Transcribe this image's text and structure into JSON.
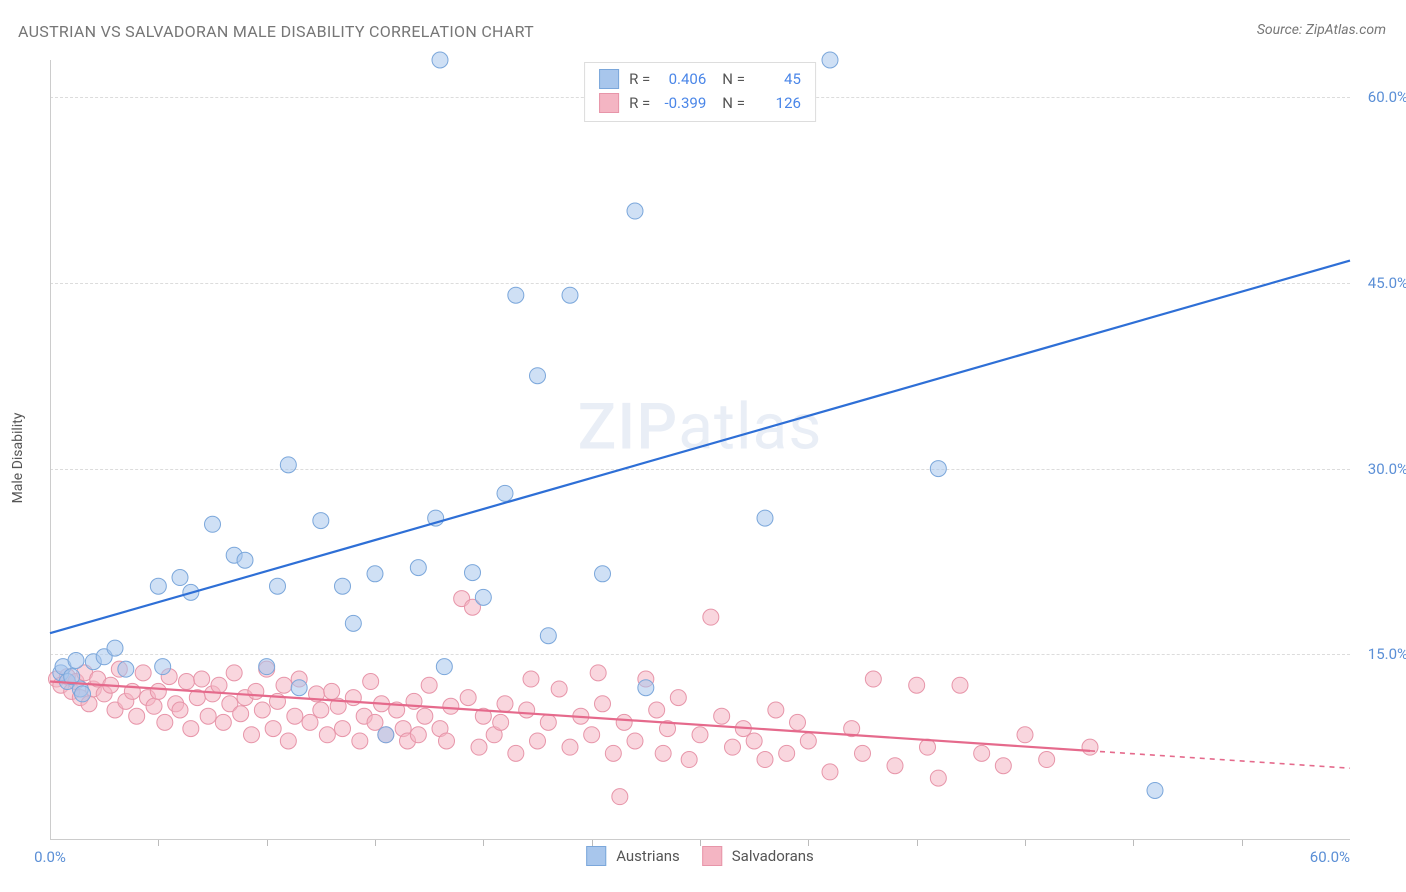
{
  "title": "AUSTRIAN VS SALVADORAN MALE DISABILITY CORRELATION CHART",
  "source": "Source: ZipAtlas.com",
  "y_axis_label": "Male Disability",
  "watermark_strong": "ZIP",
  "watermark_rest": "atlas",
  "chart": {
    "type": "scatter",
    "xlim": [
      0,
      60
    ],
    "ylim": [
      0,
      63
    ],
    "y_ticks": [
      15.0,
      30.0,
      45.0,
      60.0
    ],
    "y_tick_labels": [
      "15.0%",
      "30.0%",
      "45.0%",
      "60.0%"
    ],
    "x_corner_left": "0.0%",
    "x_corner_right": "60.0%",
    "x_minor_ticks": [
      5,
      10,
      15,
      20,
      25,
      30,
      35,
      40,
      45,
      50,
      55
    ],
    "grid_color": "#dcdcdc",
    "axis_color": "#cccccc",
    "background_color": "#ffffff",
    "marker_radius": 8,
    "marker_opacity": 0.55,
    "line_width_main": 2.2,
    "line_width_dash": 1.6
  },
  "series": [
    {
      "name": "Austrians",
      "color_fill": "#a8c6ec",
      "color_stroke": "#7ba7db",
      "line_color": "#2e6fd6",
      "R": "0.406",
      "N": "45",
      "regression": {
        "x0": 0,
        "y0": 16.7,
        "x1": 60,
        "y1": 46.8,
        "solid_until_x": 60
      },
      "points": [
        [
          0.5,
          13.5
        ],
        [
          0.6,
          14.0
        ],
        [
          0.8,
          12.8
        ],
        [
          1.0,
          13.2
        ],
        [
          1.2,
          14.5
        ],
        [
          1.4,
          12.2
        ],
        [
          1.5,
          11.8
        ],
        [
          2.0,
          14.4
        ],
        [
          2.5,
          14.8
        ],
        [
          3.0,
          15.5
        ],
        [
          3.5,
          13.8
        ],
        [
          5.0,
          20.5
        ],
        [
          5.2,
          14.0
        ],
        [
          6.0,
          21.2
        ],
        [
          6.5,
          20.0
        ],
        [
          7.5,
          25.5
        ],
        [
          8.5,
          23.0
        ],
        [
          9.0,
          22.6
        ],
        [
          10.0,
          14.0
        ],
        [
          10.5,
          20.5
        ],
        [
          11.0,
          30.3
        ],
        [
          11.5,
          12.3
        ],
        [
          12.5,
          25.8
        ],
        [
          13.5,
          20.5
        ],
        [
          14.0,
          17.5
        ],
        [
          15.0,
          21.5
        ],
        [
          15.5,
          8.5
        ],
        [
          17.0,
          22.0
        ],
        [
          17.8,
          26.0
        ],
        [
          18.0,
          63.0
        ],
        [
          18.2,
          14.0
        ],
        [
          19.5,
          21.6
        ],
        [
          20.0,
          19.6
        ],
        [
          21.0,
          28.0
        ],
        [
          21.5,
          44.0
        ],
        [
          22.5,
          37.5
        ],
        [
          23.0,
          16.5
        ],
        [
          24.0,
          44.0
        ],
        [
          25.5,
          21.5
        ],
        [
          27.0,
          50.8
        ],
        [
          27.5,
          12.3
        ],
        [
          33.0,
          26.0
        ],
        [
          36.0,
          63.0
        ],
        [
          41.0,
          30.0
        ],
        [
          51.0,
          4.0
        ]
      ]
    },
    {
      "name": "Salvadorans",
      "color_fill": "#f4b5c3",
      "color_stroke": "#e795a9",
      "line_color": "#e56a8c",
      "R": "-0.399",
      "N": "126",
      "regression": {
        "x0": 0,
        "y0": 12.8,
        "x1": 60,
        "y1": 5.8,
        "solid_until_x": 48
      },
      "points": [
        [
          0.3,
          13.0
        ],
        [
          0.5,
          12.5
        ],
        [
          0.8,
          13.2
        ],
        [
          1.0,
          12.0
        ],
        [
          1.2,
          12.8
        ],
        [
          1.4,
          11.5
        ],
        [
          1.6,
          13.5
        ],
        [
          1.8,
          11.0
        ],
        [
          2.0,
          12.2
        ],
        [
          2.2,
          13.0
        ],
        [
          2.5,
          11.8
        ],
        [
          2.8,
          12.5
        ],
        [
          3.0,
          10.5
        ],
        [
          3.2,
          13.8
        ],
        [
          3.5,
          11.2
        ],
        [
          3.8,
          12.0
        ],
        [
          4.0,
          10.0
        ],
        [
          4.3,
          13.5
        ],
        [
          4.5,
          11.5
        ],
        [
          4.8,
          10.8
        ],
        [
          5.0,
          12.0
        ],
        [
          5.3,
          9.5
        ],
        [
          5.5,
          13.2
        ],
        [
          5.8,
          11.0
        ],
        [
          6.0,
          10.5
        ],
        [
          6.3,
          12.8
        ],
        [
          6.5,
          9.0
        ],
        [
          6.8,
          11.5
        ],
        [
          7.0,
          13.0
        ],
        [
          7.3,
          10.0
        ],
        [
          7.5,
          11.8
        ],
        [
          7.8,
          12.5
        ],
        [
          8.0,
          9.5
        ],
        [
          8.3,
          11.0
        ],
        [
          8.5,
          13.5
        ],
        [
          8.8,
          10.2
        ],
        [
          9.0,
          11.5
        ],
        [
          9.3,
          8.5
        ],
        [
          9.5,
          12.0
        ],
        [
          9.8,
          10.5
        ],
        [
          10.0,
          13.8
        ],
        [
          10.3,
          9.0
        ],
        [
          10.5,
          11.2
        ],
        [
          10.8,
          12.5
        ],
        [
          11.0,
          8.0
        ],
        [
          11.3,
          10.0
        ],
        [
          11.5,
          13.0
        ],
        [
          12.0,
          9.5
        ],
        [
          12.3,
          11.8
        ],
        [
          12.5,
          10.5
        ],
        [
          12.8,
          8.5
        ],
        [
          13.0,
          12.0
        ],
        [
          13.3,
          10.8
        ],
        [
          13.5,
          9.0
        ],
        [
          14.0,
          11.5
        ],
        [
          14.3,
          8.0
        ],
        [
          14.5,
          10.0
        ],
        [
          14.8,
          12.8
        ],
        [
          15.0,
          9.5
        ],
        [
          15.3,
          11.0
        ],
        [
          15.5,
          8.5
        ],
        [
          16.0,
          10.5
        ],
        [
          16.3,
          9.0
        ],
        [
          16.5,
          8.0
        ],
        [
          16.8,
          11.2
        ],
        [
          17.0,
          8.5
        ],
        [
          17.3,
          10.0
        ],
        [
          17.5,
          12.5
        ],
        [
          18.0,
          9.0
        ],
        [
          18.3,
          8.0
        ],
        [
          18.5,
          10.8
        ],
        [
          19.0,
          19.5
        ],
        [
          19.3,
          11.5
        ],
        [
          19.5,
          18.8
        ],
        [
          19.8,
          7.5
        ],
        [
          20.0,
          10.0
        ],
        [
          20.5,
          8.5
        ],
        [
          20.8,
          9.5
        ],
        [
          21.0,
          11.0
        ],
        [
          21.5,
          7.0
        ],
        [
          22.0,
          10.5
        ],
        [
          22.2,
          13.0
        ],
        [
          22.5,
          8.0
        ],
        [
          23.0,
          9.5
        ],
        [
          23.5,
          12.2
        ],
        [
          24.0,
          7.5
        ],
        [
          24.5,
          10.0
        ],
        [
          25.0,
          8.5
        ],
        [
          25.3,
          13.5
        ],
        [
          25.5,
          11.0
        ],
        [
          26.0,
          7.0
        ],
        [
          26.3,
          3.5
        ],
        [
          26.5,
          9.5
        ],
        [
          27.0,
          8.0
        ],
        [
          27.5,
          13.0
        ],
        [
          28.0,
          10.5
        ],
        [
          28.3,
          7.0
        ],
        [
          28.5,
          9.0
        ],
        [
          29.0,
          11.5
        ],
        [
          29.5,
          6.5
        ],
        [
          30.0,
          8.5
        ],
        [
          30.5,
          18.0
        ],
        [
          31.0,
          10.0
        ],
        [
          31.5,
          7.5
        ],
        [
          32.0,
          9.0
        ],
        [
          32.5,
          8.0
        ],
        [
          33.0,
          6.5
        ],
        [
          33.5,
          10.5
        ],
        [
          34.0,
          7.0
        ],
        [
          34.5,
          9.5
        ],
        [
          35.0,
          8.0
        ],
        [
          36.0,
          5.5
        ],
        [
          37.0,
          9.0
        ],
        [
          37.5,
          7.0
        ],
        [
          38.0,
          13.0
        ],
        [
          39.0,
          6.0
        ],
        [
          40.0,
          12.5
        ],
        [
          40.5,
          7.5
        ],
        [
          41.0,
          5.0
        ],
        [
          42.0,
          12.5
        ],
        [
          43.0,
          7.0
        ],
        [
          44.0,
          6.0
        ],
        [
          45.0,
          8.5
        ],
        [
          46.0,
          6.5
        ],
        [
          48.0,
          7.5
        ]
      ]
    }
  ],
  "legend": {
    "r_label": "R  =",
    "n_label": "N  ="
  },
  "bottom_legend": {
    "items": [
      "Austrians",
      "Salvadorans"
    ]
  }
}
